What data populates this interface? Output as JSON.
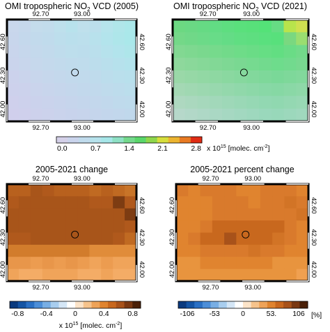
{
  "panels": [
    {
      "title": "OMI tropospheric NO",
      "title_sub": "2",
      "title_suffix": " VCD (2005)",
      "lon_ticks": [
        "92.70",
        "93.00"
      ],
      "lat_ticks": [
        "42.60",
        "42.30",
        "42.00"
      ],
      "grid": [
        [
          "#c9d7ec",
          "#c6d8ec",
          "#c4dcec",
          "#c2dcec",
          "#bee0ec",
          "#b8e2ec",
          "#bfe0ec",
          "#bcdfec",
          "#b6e4ec",
          "#b0e6ea",
          "#abe8ea"
        ],
        [
          "#c8d6ec",
          "#c4d8ec",
          "#c2daec",
          "#c0dbec",
          "#bddeec",
          "#badfec",
          "#bcdfec",
          "#b8e1ec",
          "#b3e4ec",
          "#aee6ea",
          "#aae8ea"
        ],
        [
          "#c9d5ec",
          "#c6d7ec",
          "#c4d9ec",
          "#c2daec",
          "#bfdcec",
          "#bddeec",
          "#bcddec",
          "#badfec",
          "#b6e2ec",
          "#b2e4ec",
          "#aee6ea"
        ],
        [
          "#cad4ec",
          "#c8d6ec",
          "#c6d8ec",
          "#c4d9ec",
          "#c2daec",
          "#c0dbec",
          "#bfdcec",
          "#bcddec",
          "#b9dfec",
          "#b6e1ec",
          "#b3e3ec"
        ],
        [
          "#ccd2ec",
          "#cad4ec",
          "#c8d6ec",
          "#c6d7ec",
          "#c4d8ec",
          "#c2d9ec",
          "#c1daec",
          "#bfdbec",
          "#bcddec",
          "#badfec",
          "#b8e0ec"
        ],
        [
          "#cdd1ec",
          "#ccd2ec",
          "#cad4ec",
          "#c8d5ec",
          "#c6d6ec",
          "#c4d7ec",
          "#c2d8ec",
          "#c1d9ec",
          "#bfdbec",
          "#bddcec",
          "#bbdeec"
        ],
        [
          "#cfd0ec",
          "#cdd1ec",
          "#cbd2ec",
          "#cad3ec",
          "#c8d4ec",
          "#c6d5ec",
          "#c4d6ec",
          "#c3d7ec",
          "#c1d8ec",
          "#bfdaec",
          "#bedbec"
        ],
        [
          "#d0cfec",
          "#cfd0ec",
          "#cdd1ec",
          "#ccd2ec",
          "#cad3ec",
          "#c8d3ec",
          "#c7d4ec",
          "#c5d5ec",
          "#c3d6ec",
          "#c2d7ec",
          "#c0d8ec"
        ]
      ]
    },
    {
      "title": "OMI tropospheric NO",
      "title_sub": "2",
      "title_suffix": " VCD (2021)",
      "lon_ticks": [
        "92.70",
        "93.00"
      ],
      "lat_ticks": [
        "42.60",
        "42.30",
        "42.00"
      ],
      "grid": [
        [
          "#6cd882",
          "#6ad884",
          "#66da84",
          "#62dc84",
          "#5ede80",
          "#5ae07c",
          "#58e07a",
          "#54e278",
          "#66dc84",
          "#b8e44c",
          "#cfe050"
        ],
        [
          "#74d888",
          "#70d888",
          "#6cda88",
          "#68dc88",
          "#64dc86",
          "#60de82",
          "#5ede80",
          "#5ae07e",
          "#58e07c",
          "#7ad880",
          "#9ade70"
        ],
        [
          "#82d892",
          "#7ed890",
          "#7ad88e",
          "#76da8c",
          "#72da8a",
          "#6edc88",
          "#6adc86",
          "#66de84",
          "#62de82",
          "#6adc86",
          "#72da8a"
        ],
        [
          "#8ed89c",
          "#8ad89a",
          "#86d898",
          "#82d896",
          "#7ed894",
          "#7ad892",
          "#76da90",
          "#72da8e",
          "#6edc8c",
          "#72da8e",
          "#78d890"
        ],
        [
          "#9ad8a8",
          "#96d8a6",
          "#92d8a4",
          "#8ed8a2",
          "#8ad8a0",
          "#86d89e",
          "#82d89c",
          "#7ed89a",
          "#7ad898",
          "#7ed89a",
          "#82d89c"
        ],
        [
          "#a4d8b4",
          "#a0d8b2",
          "#9cd8b0",
          "#98d8ae",
          "#94d8ac",
          "#90d8aa",
          "#8cd8a8",
          "#88d8a6",
          "#86d8a4",
          "#8ad8a6",
          "#8ed8a8"
        ],
        [
          "#aed8c0",
          "#aad8be",
          "#a6d8bc",
          "#a2d8ba",
          "#9ed8b8",
          "#9ad8b6",
          "#96d8b4",
          "#92d8b2",
          "#90d8b0",
          "#94d8b2",
          "#98d8b4"
        ],
        [
          "#b6d8ca",
          "#b2d8c8",
          "#aed8c6",
          "#aad8c4",
          "#a6d8c2",
          "#a2d8c0",
          "#9ed8be",
          "#9ad8bc",
          "#98d8ba",
          "#9cd8bc",
          "#a0d8be"
        ]
      ]
    },
    {
      "title": "2005-2021 change",
      "lon_ticks": [
        "92.70",
        "93.00"
      ],
      "lat_ticks": [
        "42.60",
        "42.30",
        "42.00"
      ],
      "grid": [
        [
          "#b8611e",
          "#b8611e",
          "#a8551a",
          "#b0591c",
          "#b8611e",
          "#b8611e",
          "#b8611e",
          "#c06a22",
          "#b8611e",
          "#c06a22",
          "#c87428"
        ],
        [
          "#b0591c",
          "#a8551a",
          "#a8551a",
          "#a8551a",
          "#a8551a",
          "#a8551a",
          "#a8551a",
          "#b0591c",
          "#b0591c",
          "#7d3c12",
          "#b0591c"
        ],
        [
          "#a8551a",
          "#a8551a",
          "#a8551a",
          "#a8551a",
          "#a8551a",
          "#a8551a",
          "#a8551a",
          "#a8551a",
          "#a8551a",
          "#a8551a",
          "#7d3c12"
        ],
        [
          "#a8551a",
          "#a8551a",
          "#a8551a",
          "#a8551a",
          "#a8551a",
          "#a8551a",
          "#a8551a",
          "#a8551a",
          "#a8551a",
          "#a8551a",
          "#b0591c"
        ],
        [
          "#b0591c",
          "#b0591c",
          "#a8551a",
          "#a8551a",
          "#a8551a",
          "#a8551a",
          "#a8551a",
          "#a8551a",
          "#a8551a",
          "#b0591c",
          "#c06a22"
        ],
        [
          "#d27c2c",
          "#d27c2c",
          "#d27c2c",
          "#d27c2c",
          "#d27c2c",
          "#d27c2c",
          "#d27c2c",
          "#e08c3a",
          "#e08c3a",
          "#e08c3a",
          "#e08c3a"
        ],
        [
          "#e8964a",
          "#e8964a",
          "#ec9c50",
          "#e8964a",
          "#ec9c50",
          "#e8964a",
          "#ec9c50",
          "#f0a45a",
          "#ec9c50",
          "#f0a45a",
          "#f0a45a"
        ],
        [
          "#f0a45a",
          "#f4ac66",
          "#f4ac66",
          "#f0a45a",
          "#f0a45a",
          "#f0a45a",
          "#f4ac66",
          "#f4ac66",
          "#f0a45a",
          "#f4ac66",
          "#f4ac66"
        ]
      ]
    },
    {
      "title": "2005-2021 percent change",
      "lon_ticks": [
        "92.70",
        "93.00"
      ],
      "lat_ticks": [
        "42.60",
        "42.30",
        "42.00"
      ],
      "grid": [
        [
          "#d97a2c",
          "#e0842f",
          "#d97a2c",
          "#d97a2c",
          "#d97a2c",
          "#e0842f",
          "#e0842f",
          "#d97a2c",
          "#d97a2c",
          "#d97a2c",
          "#e0842f"
        ],
        [
          "#e0842f",
          "#e0842f",
          "#e0842f",
          "#d97a2c",
          "#d97a2c",
          "#d97a2c",
          "#e0842f",
          "#d97a2c",
          "#d97a2c",
          "#d27426",
          "#d97a2c"
        ],
        [
          "#e0842f",
          "#e0842f",
          "#e0842f",
          "#d97a2c",
          "#d97a2c",
          "#d97a2c",
          "#d97a2c",
          "#d97a2c",
          "#d97a2c",
          "#d97a2c",
          "#d27426"
        ],
        [
          "#e0842f",
          "#e0842f",
          "#d97a2c",
          "#c8681e",
          "#c8681e",
          "#c8681e",
          "#c8681e",
          "#c8681e",
          "#c8681e",
          "#d97a2c",
          "#e0842f"
        ],
        [
          "#e0842f",
          "#d97a2c",
          "#c8681e",
          "#c8681e",
          "#a8521a",
          "#c8681e",
          "#c8681e",
          "#c8681e",
          "#d27426",
          "#d97a2c",
          "#e0842f"
        ],
        [
          "#e0842f",
          "#e0842f",
          "#d97a2c",
          "#d97a2c",
          "#d97a2c",
          "#d97a2c",
          "#d27426",
          "#d97a2c",
          "#d97a2c",
          "#e0842f",
          "#e0842f"
        ],
        [
          "#e8943e",
          "#e8943e",
          "#e0842f",
          "#e0842f",
          "#e0842f",
          "#e0842f",
          "#e0842f",
          "#e0842f",
          "#e8943e",
          "#e8943e",
          "#e8943e"
        ],
        [
          "#e8943e",
          "#e8943e",
          "#e8943e",
          "#e8943e",
          "#e8943e",
          "#e8943e",
          "#e8943e",
          "#e8943e",
          "#e8943e",
          "#e8943e",
          "#f0a050"
        ]
      ]
    }
  ],
  "colorbar_top": {
    "colors": [
      "#d4d0e8",
      "#cad4ec",
      "#c0dbec",
      "#b6e2ec",
      "#a6e6e8",
      "#8ee0c4",
      "#74d88c",
      "#5ad66a",
      "#8ed64c",
      "#d6de3c",
      "#ecb430",
      "#e87a22",
      "#e02c14"
    ],
    "ticks": [
      "0.0",
      "0.7",
      "1.4",
      "2.1",
      "2.8"
    ],
    "unit_prefix": "x 10",
    "unit_exp": "15",
    "unit_main": " [molec. cm",
    "unit_exp2": "-2",
    "unit_end": "]"
  },
  "colorbar_change": {
    "colors": [
      "#0a3a7e",
      "#1454a4",
      "#2a70c4",
      "#4c8ed8",
      "#78aee4",
      "#a8cdee",
      "#d4e6f6",
      "#ffffff",
      "#fbe3c8",
      "#f6c38c",
      "#eea358",
      "#e0842f",
      "#c8681e",
      "#a8521a",
      "#7a3812",
      "#4a2008"
    ],
    "ticks": [
      "-0.8",
      "-0.4",
      "0",
      "0.4",
      "0.8"
    ],
    "unit_prefix": "x 10",
    "unit_exp": "15",
    "unit_main": " [molec. cm",
    "unit_exp2": "-2",
    "unit_end": "]"
  },
  "colorbar_percent": {
    "colors": [
      "#0a3a7e",
      "#1454a4",
      "#2a70c4",
      "#4c8ed8",
      "#78aee4",
      "#a8cdee",
      "#d4e6f6",
      "#ffffff",
      "#fbe3c8",
      "#f6c38c",
      "#eea358",
      "#e0842f",
      "#c8681e",
      "#a8521a",
      "#7a3812",
      "#4a2008"
    ],
    "ticks": [
      "-106",
      "-53",
      "0",
      "53.",
      "106"
    ],
    "unit": "[%]"
  }
}
